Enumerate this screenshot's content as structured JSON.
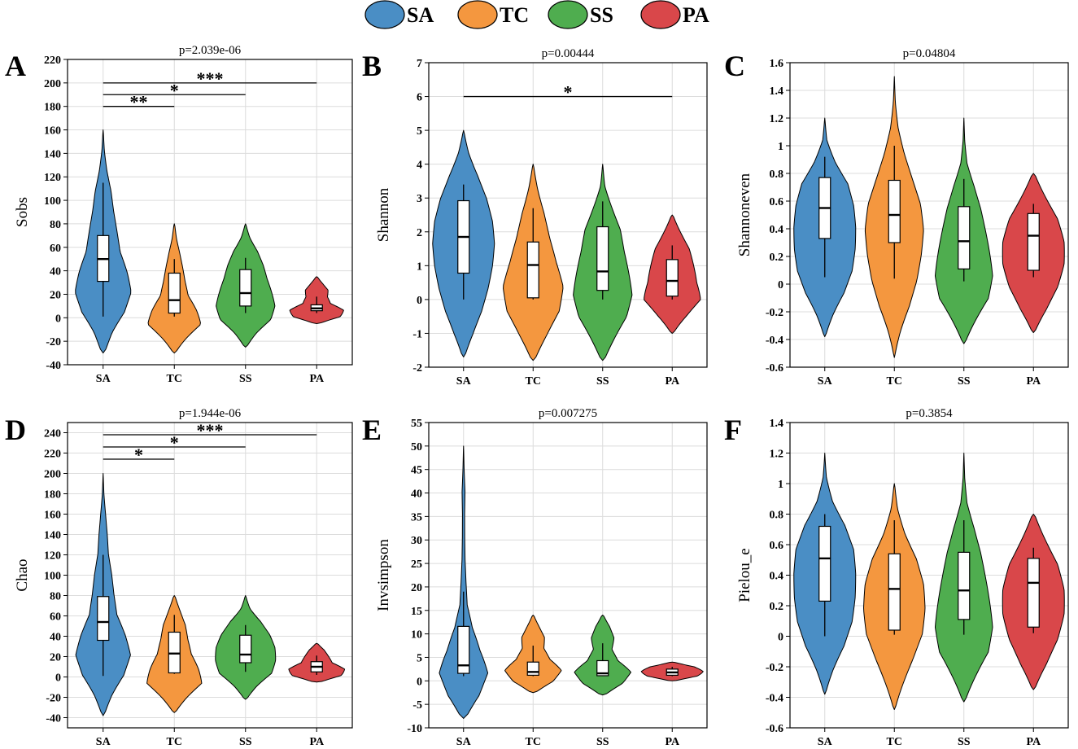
{
  "legend": [
    {
      "label": "SA",
      "color": "#4a8ec5"
    },
    {
      "label": "TC",
      "color": "#f4973f"
    },
    {
      "label": "SS",
      "color": "#4fad4f"
    },
    {
      "label": "PA",
      "color": "#d9474a"
    }
  ],
  "chart_data": [
    {
      "panel": "A",
      "type": "violin",
      "title": "p=2.039e-06",
      "ylabel": "Sobs",
      "categories": [
        "SA",
        "TC",
        "SS",
        "PA"
      ],
      "ylim": [
        -40,
        220
      ],
      "yticks": [
        -40,
        -20,
        0,
        20,
        40,
        60,
        80,
        100,
        120,
        140,
        160,
        180,
        200,
        220
      ],
      "violin_range": [
        [
          -30,
          160
        ],
        [
          -30,
          80
        ],
        [
          -25,
          80
        ],
        [
          -5,
          35
        ]
      ],
      "density": [
        [
          0.2,
          0.45,
          0.85,
          1,
          0.8,
          0.55,
          0.45,
          0.35,
          0.28,
          0.15,
          0.06,
          0.02
        ],
        [
          0.15,
          0.55,
          1,
          0.75,
          0.45,
          0.35,
          0.28,
          0.2,
          0.1,
          0.04
        ],
        [
          0.15,
          0.5,
          0.95,
          1,
          0.85,
          0.7,
          0.6,
          0.45,
          0.2,
          0.05
        ],
        [
          0.3,
          1,
          0.95,
          0.45,
          0.35,
          0.4,
          0.25,
          0.08
        ]
      ],
      "boxes": [
        {
          "whisker_low": 1,
          "q1": 31,
          "median": 50,
          "q3": 70,
          "whisker_high": 115
        },
        {
          "whisker_low": 1,
          "q1": 4,
          "median": 15,
          "q3": 38,
          "whisker_high": 50
        },
        {
          "whisker_low": 4,
          "q1": 10,
          "median": 21,
          "q3": 41,
          "whisker_high": 51
        },
        {
          "whisker_low": 4,
          "q1": 6,
          "median": 8,
          "q3": 11,
          "whisker_high": 18
        }
      ],
      "significance": [
        {
          "from": "SA",
          "to": "TC",
          "y": 180,
          "label": "**"
        },
        {
          "from": "SA",
          "to": "SS",
          "y": 190,
          "label": "*"
        },
        {
          "from": "SA",
          "to": "PA",
          "y": 200,
          "label": "***"
        }
      ]
    },
    {
      "panel": "B",
      "type": "violin",
      "title": "p=0.00444",
      "ylabel": "Shannon",
      "categories": [
        "SA",
        "TC",
        "SS",
        "PA"
      ],
      "ylim": [
        -2,
        7
      ],
      "yticks": [
        -2,
        -1,
        0,
        1,
        2,
        3,
        4,
        5,
        6,
        7
      ],
      "violin_range": [
        [
          -1.7,
          5
        ],
        [
          -1.8,
          4
        ],
        [
          -1.8,
          4
        ],
        [
          -1,
          2.5
        ]
      ],
      "density": [
        [
          0.15,
          0.45,
          0.7,
          0.85,
          0.95,
          1,
          0.95,
          0.8,
          0.55,
          0.25,
          0.05
        ],
        [
          0.2,
          0.6,
          0.95,
          1,
          0.75,
          0.55,
          0.4,
          0.2,
          0.05
        ],
        [
          0.2,
          0.55,
          0.9,
          1,
          0.85,
          0.7,
          0.6,
          0.35,
          0.1,
          0.02
        ],
        [
          0.15,
          0.6,
          1,
          0.8,
          0.7,
          0.6,
          0.35,
          0.1
        ]
      ],
      "boxes": [
        {
          "whisker_low": 0,
          "q1": 0.78,
          "median": 1.85,
          "q3": 2.92,
          "whisker_high": 3.4
        },
        {
          "whisker_low": 0,
          "q1": 0.05,
          "median": 1.02,
          "q3": 1.7,
          "whisker_high": 2.7
        },
        {
          "whisker_low": 0,
          "q1": 0.27,
          "median": 0.83,
          "q3": 2.15,
          "whisker_high": 2.9
        },
        {
          "whisker_low": 0,
          "q1": 0.1,
          "median": 0.55,
          "q3": 1.18,
          "whisker_high": 1.6
        }
      ],
      "significance": [
        {
          "from": "SA",
          "to": "PA",
          "y": 6,
          "label": "*"
        }
      ]
    },
    {
      "panel": "C",
      "type": "violin",
      "title": "p=0.04804",
      "ylabel": "Shannoneven",
      "categories": [
        "SA",
        "TC",
        "SS",
        "PA"
      ],
      "ylim": [
        -0.6,
        1.6
      ],
      "yticks": [
        -0.6,
        -0.4,
        -0.2,
        0,
        0.2,
        0.4,
        0.6,
        0.8,
        1,
        1.2,
        1.4,
        1.6
      ],
      "violin_range": [
        [
          -0.38,
          1.2
        ],
        [
          -0.53,
          1.5
        ],
        [
          -0.43,
          1.2
        ],
        [
          -0.35,
          0.8
        ]
      ],
      "density": [
        [
          0.1,
          0.4,
          0.75,
          0.95,
          1,
          1,
          0.95,
          0.8,
          0.4,
          0.1,
          0.02
        ],
        [
          0.05,
          0.3,
          0.6,
          0.8,
          0.9,
          0.95,
          0.85,
          0.6,
          0.35,
          0.15,
          0.05,
          0.01
        ],
        [
          0.15,
          0.55,
          0.95,
          1,
          0.85,
          0.7,
          0.55,
          0.35,
          0.12,
          0.04,
          0.01
        ],
        [
          0.15,
          0.55,
          0.85,
          1,
          1,
          0.85,
          0.5,
          0.15
        ]
      ],
      "boxes": [
        {
          "whisker_low": 0.05,
          "q1": 0.33,
          "median": 0.55,
          "q3": 0.77,
          "whisker_high": 0.92
        },
        {
          "whisker_low": 0.04,
          "q1": 0.3,
          "median": 0.5,
          "q3": 0.75,
          "whisker_high": 1
        },
        {
          "whisker_low": 0.02,
          "q1": 0.11,
          "median": 0.31,
          "q3": 0.56,
          "whisker_high": 0.76
        },
        {
          "whisker_low": 0.05,
          "q1": 0.1,
          "median": 0.35,
          "q3": 0.51,
          "whisker_high": 0.58
        }
      ],
      "significance": []
    },
    {
      "panel": "D",
      "type": "violin",
      "title": "p=1.944e-06",
      "ylabel": "Chao",
      "categories": [
        "SA",
        "TC",
        "SS",
        "PA"
      ],
      "ylim": [
        -50,
        250
      ],
      "yticks": [
        -40,
        -20,
        0,
        20,
        40,
        60,
        80,
        100,
        120,
        140,
        160,
        180,
        200,
        220,
        240
      ],
      "violin_range": [
        [
          -38,
          200
        ],
        [
          -35,
          80
        ],
        [
          -22,
          80
        ],
        [
          -5,
          33
        ]
      ],
      "density": [
        [
          0.15,
          0.45,
          0.85,
          1,
          0.75,
          0.45,
          0.35,
          0.28,
          0.18,
          0.15,
          0.1,
          0.04,
          0.01
        ],
        [
          0.15,
          0.55,
          1,
          0.8,
          0.55,
          0.45,
          0.4,
          0.25,
          0.08
        ],
        [
          0.15,
          0.5,
          0.95,
          1,
          0.95,
          0.8,
          0.55,
          0.2,
          0.04
        ],
        [
          0.4,
          1,
          0.95,
          0.5,
          0.4,
          0.3,
          0.1
        ]
      ],
      "boxes": [
        {
          "whisker_low": 1,
          "q1": 36,
          "median": 54,
          "q3": 79,
          "whisker_high": 120
        },
        {
          "whisker_low": 3,
          "q1": 4,
          "median": 23,
          "q3": 44,
          "whisker_high": 61
        },
        {
          "whisker_low": 5,
          "q1": 14,
          "median": 22,
          "q3": 41,
          "whisker_high": 51
        },
        {
          "whisker_low": 2,
          "q1": 5,
          "median": 10,
          "q3": 15,
          "whisker_high": 21
        }
      ],
      "significance": [
        {
          "from": "SA",
          "to": "TC",
          "y": 214,
          "label": "*"
        },
        {
          "from": "SA",
          "to": "SS",
          "y": 226,
          "label": "*"
        },
        {
          "from": "SA",
          "to": "PA",
          "y": 238,
          "label": "***"
        }
      ]
    },
    {
      "panel": "E",
      "type": "violin",
      "title": "p=0.007275",
      "ylabel": "Invsimpson",
      "categories": [
        "SA",
        "TC",
        "SS",
        "PA"
      ],
      "ylim": [
        -10,
        55
      ],
      "yticks": [
        -10,
        -5,
        0,
        5,
        10,
        15,
        20,
        25,
        30,
        35,
        40,
        45,
        50,
        55
      ],
      "violin_range": [
        [
          -8,
          50
        ],
        [
          -2.5,
          14
        ],
        [
          -3,
          14
        ],
        [
          0,
          4
        ]
      ],
      "density": [
        [
          0.3,
          0.8,
          1,
          0.6,
          0.3,
          0.12,
          0.08,
          0.05,
          0.04,
          0.04,
          0.06,
          0.03,
          0.01
        ],
        [
          0.3,
          0.85,
          1,
          0.55,
          0.35,
          0.4,
          0.25,
          0.08
        ],
        [
          0.3,
          0.85,
          1,
          0.5,
          0.3,
          0.4,
          0.3,
          0.1
        ],
        [
          0.3,
          0.9,
          1,
          0.8,
          0.2
        ]
      ],
      "boxes": [
        {
          "whisker_low": 1,
          "q1": 1.6,
          "median": 3.3,
          "q3": 11.6,
          "whisker_high": 19
        },
        {
          "whisker_low": 1,
          "q1": 1.2,
          "median": 1.9,
          "q3": 4,
          "whisker_high": 7.5
        },
        {
          "whisker_low": 1,
          "q1": 1.1,
          "median": 1.6,
          "q3": 4.3,
          "whisker_high": 8
        },
        {
          "whisker_low": 1,
          "q1": 1.2,
          "median": 1.8,
          "q3": 2.5,
          "whisker_high": 3
        }
      ],
      "significance": []
    },
    {
      "panel": "F",
      "type": "violin",
      "title": "p=0.3854",
      "ylabel": "Pielou_e",
      "categories": [
        "SA",
        "TC",
        "SS",
        "PA"
      ],
      "ylim": [
        -0.6,
        1.4
      ],
      "yticks": [
        -0.6,
        -0.4,
        -0.2,
        0,
        0.2,
        0.4,
        0.6,
        0.8,
        1,
        1.2,
        1.4
      ],
      "violin_range": [
        [
          -0.38,
          1.2
        ],
        [
          -0.48,
          1
        ],
        [
          -0.43,
          1.2
        ],
        [
          -0.35,
          0.8
        ]
      ],
      "density": [
        [
          0.1,
          0.4,
          0.75,
          0.95,
          1,
          1,
          0.95,
          0.7,
          0.3,
          0.08,
          0.01
        ],
        [
          0.1,
          0.4,
          0.7,
          0.95,
          1,
          0.95,
          0.75,
          0.4,
          0.15,
          0.04
        ],
        [
          0.15,
          0.55,
          0.95,
          1,
          0.85,
          0.7,
          0.55,
          0.35,
          0.12,
          0.04,
          0.01
        ],
        [
          0.15,
          0.55,
          0.85,
          1,
          1,
          0.85,
          0.5,
          0.15
        ]
      ],
      "boxes": [
        {
          "whisker_low": 0,
          "q1": 0.23,
          "median": 0.51,
          "q3": 0.72,
          "whisker_high": 0.8
        },
        {
          "whisker_low": 0.01,
          "q1": 0.04,
          "median": 0.31,
          "q3": 0.54,
          "whisker_high": 0.76
        },
        {
          "whisker_low": 0.01,
          "q1": 0.11,
          "median": 0.3,
          "q3": 0.55,
          "whisker_high": 0.76
        },
        {
          "whisker_low": 0.02,
          "q1": 0.06,
          "median": 0.35,
          "q3": 0.51,
          "whisker_high": 0.58
        }
      ],
      "significance": []
    }
  ]
}
